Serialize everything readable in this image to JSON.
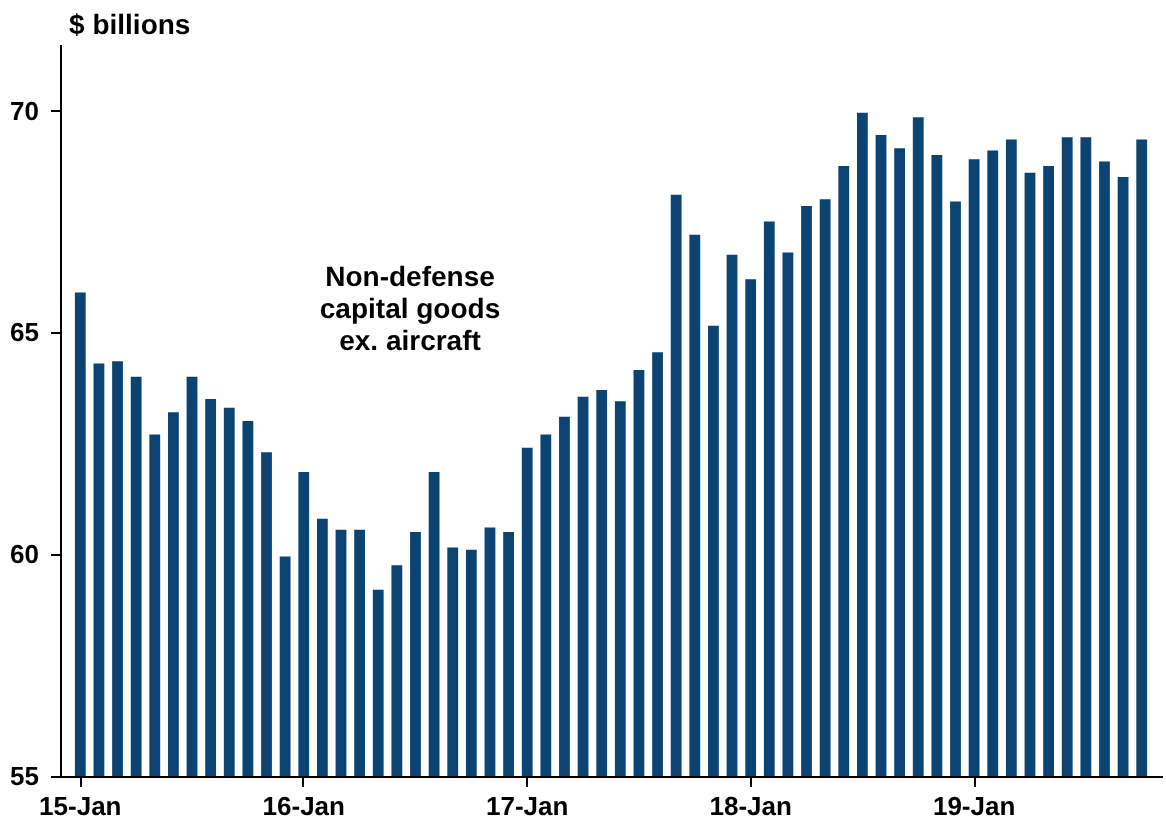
{
  "chart_data": {
    "type": "bar",
    "title": "$ billions",
    "categories": [
      "15-Jan",
      null,
      null,
      null,
      null,
      null,
      null,
      null,
      null,
      null,
      null,
      null,
      "16-Jan",
      null,
      null,
      null,
      null,
      null,
      null,
      null,
      null,
      null,
      null,
      null,
      "17-Jan",
      null,
      null,
      null,
      null,
      null,
      null,
      null,
      null,
      null,
      null,
      null,
      "18-Jan",
      null,
      null,
      null,
      null,
      null,
      null,
      null,
      null,
      null,
      null,
      null,
      "19-Jan",
      null,
      null,
      null,
      null,
      null,
      null,
      null,
      null,
      null
    ],
    "values": [
      65.9,
      64.3,
      64.35,
      64.0,
      62.7,
      63.2,
      64.0,
      63.5,
      63.3,
      63.0,
      62.3,
      59.95,
      61.85,
      60.8,
      60.55,
      60.55,
      59.2,
      59.75,
      60.5,
      61.85,
      60.15,
      60.1,
      60.6,
      60.5,
      62.4,
      62.7,
      63.1,
      63.55,
      63.7,
      63.45,
      64.15,
      64.55,
      68.1,
      67.2,
      65.15,
      66.75,
      66.2,
      67.5,
      66.8,
      67.85,
      68.0,
      68.75,
      69.95,
      69.45,
      69.15,
      69.85,
      69.0,
      67.95,
      68.9,
      69.1,
      69.35,
      68.6,
      68.75,
      69.4,
      69.4,
      68.85,
      68.5,
      69.35
    ],
    "color": "#0b4472",
    "ylim": [
      55,
      71.5
    ],
    "yticks": [
      55,
      60,
      65,
      70
    ],
    "grid": false,
    "annotations": [
      "Non-defense\ncapital goods\nex. aircraft"
    ]
  }
}
